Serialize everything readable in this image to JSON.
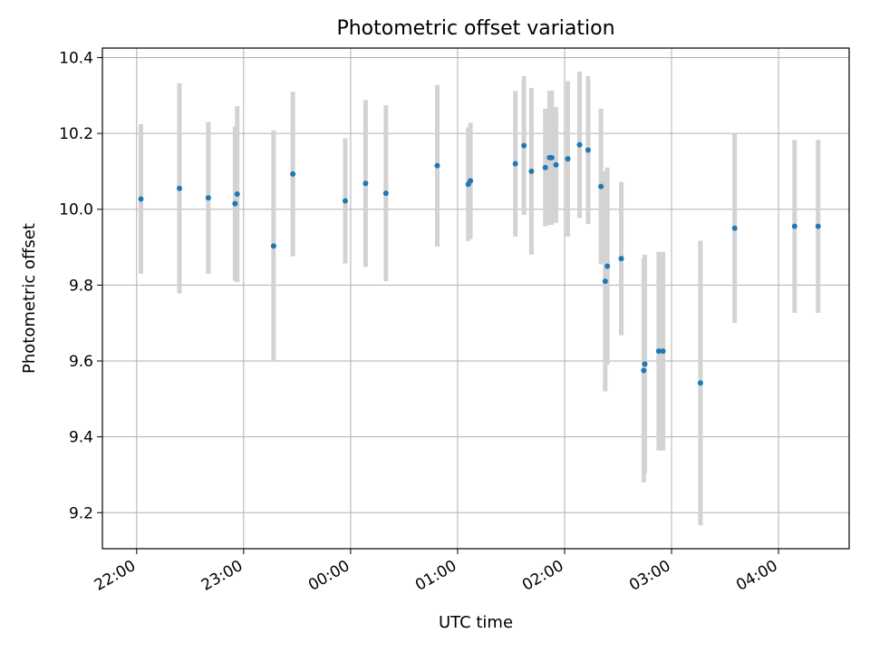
{
  "chart_data": {
    "type": "scatter",
    "title": "Photometric offset variation",
    "xlabel": "UTC time",
    "ylabel": "Photometric offset",
    "x_ticks": [
      "22:00",
      "23:00",
      "00:00",
      "01:00",
      "02:00",
      "03:00",
      "04:00"
    ],
    "y_ticks": [
      "9.2",
      "9.4",
      "9.6",
      "9.8",
      "10.0",
      "10.2",
      "10.4"
    ],
    "ylim": [
      9.105,
      10.425
    ],
    "xlim_hours": [
      21.68,
      28.66
    ],
    "grid": true,
    "colors": {
      "point": "#1f77b4",
      "errorbar": "#d3d3d3",
      "grid": "#b0b0b0"
    },
    "series": [
      {
        "points": [
          {
            "t": 22.04,
            "y": 10.027,
            "yerr": 0.197
          },
          {
            "t": 22.4,
            "y": 10.055,
            "yerr": 0.277
          },
          {
            "t": 22.67,
            "y": 10.03,
            "yerr": 0.2
          },
          {
            "t": 22.92,
            "y": 10.015,
            "yerr": 0.203
          },
          {
            "t": 22.94,
            "y": 10.04,
            "yerr": 0.232
          },
          {
            "t": 23.28,
            "y": 9.903,
            "yerr": 0.305
          },
          {
            "t": 23.46,
            "y": 10.093,
            "yerr": 0.217
          },
          {
            "t": 23.95,
            "y": 10.022,
            "yerr": 0.165
          },
          {
            "t": 24.14,
            "y": 10.068,
            "yerr": 0.22
          },
          {
            "t": 24.33,
            "y": 10.042,
            "yerr": 0.232
          },
          {
            "t": 24.81,
            "y": 10.115,
            "yerr": 0.213
          },
          {
            "t": 25.1,
            "y": 10.066,
            "yerr": 0.15
          },
          {
            "t": 25.12,
            "y": 10.075,
            "yerr": 0.153
          },
          {
            "t": 25.54,
            "y": 10.12,
            "yerr": 0.192
          },
          {
            "t": 25.62,
            "y": 10.168,
            "yerr": 0.183
          },
          {
            "t": 25.69,
            "y": 10.1,
            "yerr": 0.22
          },
          {
            "t": 25.82,
            "y": 10.11,
            "yerr": 0.155
          },
          {
            "t": 25.86,
            "y": 10.136,
            "yerr": 0.177
          },
          {
            "t": 25.88,
            "y": 10.136,
            "yerr": 0.177
          },
          {
            "t": 25.92,
            "y": 10.117,
            "yerr": 0.153
          },
          {
            "t": 26.03,
            "y": 10.133,
            "yerr": 0.205
          },
          {
            "t": 26.14,
            "y": 10.17,
            "yerr": 0.193
          },
          {
            "t": 26.22,
            "y": 10.156,
            "yerr": 0.195
          },
          {
            "t": 26.34,
            "y": 10.06,
            "yerr": 0.205
          },
          {
            "t": 26.38,
            "y": 9.81,
            "yerr": 0.29
          },
          {
            "t": 26.4,
            "y": 9.85,
            "yerr": 0.26
          },
          {
            "t": 26.53,
            "y": 9.87,
            "yerr": 0.202
          },
          {
            "t": 26.74,
            "y": 9.575,
            "yerr": 0.295
          },
          {
            "t": 26.75,
            "y": 9.592,
            "yerr": 0.288
          },
          {
            "t": 26.88,
            "y": 9.626,
            "yerr": 0.262
          },
          {
            "t": 26.92,
            "y": 9.626,
            "yerr": 0.262
          },
          {
            "t": 27.27,
            "y": 9.542,
            "yerr": 0.375
          },
          {
            "t": 27.59,
            "y": 9.95,
            "yerr": 0.25
          },
          {
            "t": 28.15,
            "y": 9.955,
            "yerr": 0.228
          },
          {
            "t": 28.37,
            "y": 9.955,
            "yerr": 0.228
          }
        ]
      }
    ]
  }
}
